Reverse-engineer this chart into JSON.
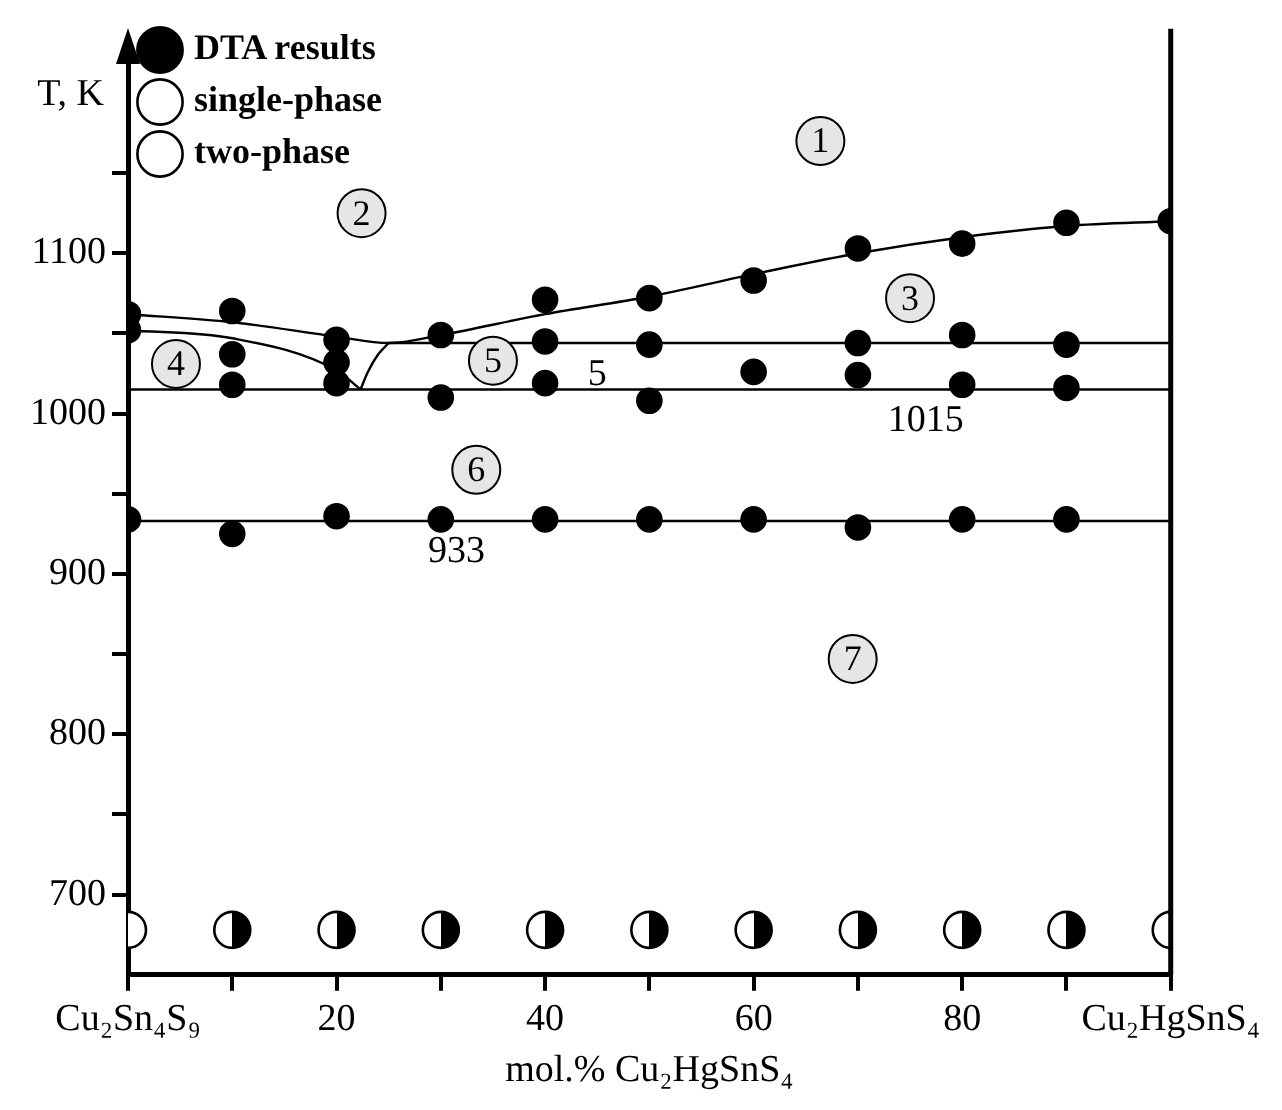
{
  "chart_data": {
    "type": "scatter",
    "xlabel": "mol.% Cu₂HgSnS₄",
    "ylabel": "T, K",
    "xlim": [
      0,
      100
    ],
    "xticks": [
      {
        "value": 0,
        "label": "Cu₂Sn₄S₉"
      },
      {
        "value": 10,
        "label": null
      },
      20,
      {
        "value": 30,
        "label": null
      },
      40,
      {
        "value": 50,
        "label": null
      },
      60,
      {
        "value": 70,
        "label": null
      },
      80,
      {
        "value": 90,
        "label": null
      },
      {
        "value": 100,
        "label": "Cu₂HgSnS₄"
      }
    ],
    "ylim": [
      650,
      1230
    ],
    "yticks": [
      700,
      {
        "value": 750,
        "label": null
      },
      800,
      {
        "value": 850,
        "label": null
      },
      900,
      {
        "value": 950,
        "label": null
      },
      1000,
      {
        "value": 1050,
        "label": null
      },
      1100,
      {
        "value": 1150,
        "label": null
      }
    ],
    "grid": false,
    "legend": "top left",
    "series": [
      {
        "name": "DTA results",
        "color": "#000000",
        "marker": "circle",
        "x": [
          0,
          0,
          0,
          10,
          10,
          10,
          10,
          20,
          20,
          20,
          20,
          30,
          30,
          30,
          40,
          40,
          40,
          40,
          50,
          50,
          50,
          50,
          60,
          60,
          60,
          70,
          70,
          70,
          70,
          80,
          80,
          80,
          80,
          90,
          90,
          90,
          90,
          100
        ],
        "values": [
          1062,
          1052,
          934,
          1064,
          1037,
          1018,
          925,
          1046,
          1032,
          1019,
          936,
          1049,
          1010,
          934,
          1071,
          1045,
          1019,
          934,
          1072,
          1043,
          1008,
          934,
          1083,
          1026,
          934,
          1103,
          1044,
          1024,
          929,
          1106,
          1049,
          1018,
          934,
          1119,
          1043,
          1016,
          934,
          1120
        ]
      },
      {
        "name": "single-phase",
        "color": "#ffffff",
        "marker": "circle",
        "x": [
          0,
          100
        ],
        "values": [
          678,
          678
        ]
      },
      {
        "name": "two-phase",
        "color": "#000000",
        "x": [
          10,
          20,
          30,
          40,
          50,
          60,
          70,
          80,
          90
        ],
        "values": [
          678,
          678,
          678,
          678,
          678,
          678,
          678,
          678,
          678
        ]
      },
      {
        "type": "line",
        "color": "#000000",
        "marker": "none",
        "x": [
          0,
          10,
          20,
          25,
          30,
          40,
          50,
          60,
          70,
          80,
          90,
          100
        ],
        "values": [
          1062,
          1057,
          1048,
          1044,
          1049,
          1062,
          1073,
          1087,
          1100,
          1110,
          1117,
          1120
        ]
      },
      {
        "type": "line",
        "color": "#000000",
        "marker": "none",
        "x": [
          0,
          10,
          20,
          22.3
        ],
        "values": [
          1052,
          1047,
          1027,
          1015
        ]
      },
      {
        "type": "line",
        "color": "#000000",
        "marker": "none",
        "x": [
          22.3,
          23,
          24,
          25
        ],
        "values": [
          1015,
          1026,
          1037,
          1044
        ]
      },
      {
        "type": "line",
        "color": "#000000",
        "marker": "none",
        "x": [
          25,
          100
        ],
        "values": [
          1044,
          1044
        ]
      }
    ],
    "ref_lines": [
      {
        "axis": "y",
        "value": 1015,
        "label": "1015",
        "color": "#000000"
      },
      {
        "axis": "y",
        "value": 933,
        "label": "933",
        "color": "#000000"
      }
    ],
    "annotations": [
      {
        "text": "1",
        "x": 66.4,
        "y": 1170
      },
      {
        "text": "2",
        "x": 22.4,
        "y": 1125
      },
      {
        "text": "3",
        "x": 75,
        "y": 1072
      },
      {
        "text": "4",
        "x": 4.6,
        "y": 1031
      },
      {
        "text": "5",
        "x": 35,
        "y": 1033
      },
      {
        "text": "6",
        "x": 33.4,
        "y": 965
      },
      {
        "text": "7",
        "x": 69.5,
        "y": 847
      },
      "5"
    ]
  }
}
